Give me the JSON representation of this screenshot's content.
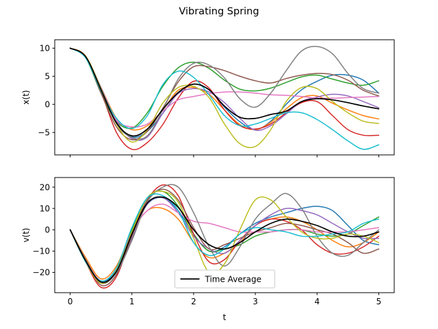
{
  "figure": {
    "title": "Vibrating Spring"
  },
  "chart_data": [
    {
      "type": "line",
      "ylabel": "x(t)",
      "xlabel": "",
      "xlim": [
        -0.25,
        5.25
      ],
      "ylim": [
        -9.0,
        11.5
      ],
      "xticks": [
        0,
        1,
        2,
        3,
        4,
        5
      ],
      "xtick_labels_visible": false,
      "yticks": [
        -5,
        0,
        5,
        10
      ],
      "ytick_labels": [
        "−5",
        "0",
        "5",
        "10"
      ],
      "grid": false,
      "t": [
        0,
        0.25,
        0.5,
        0.75,
        1,
        1.25,
        1.5,
        1.75,
        2,
        2.25,
        2.5,
        2.75,
        3,
        3.25,
        3.5,
        3.75,
        4,
        4.25,
        4.5,
        4.75,
        5
      ],
      "series": [
        {
          "color": "#1f77b4",
          "values": [
            10,
            8.5,
            2.8,
            -3.2,
            -5.8,
            -4.8,
            -1.6,
            2.0,
            3.6,
            2.6,
            -0.5,
            -3.1,
            -4.5,
            -3.0,
            0.0,
            2.6,
            4.1,
            5.2,
            5.2,
            4.3,
            2.0
          ]
        },
        {
          "color": "#ff7f0e",
          "values": [
            10,
            8.5,
            3.0,
            -2.5,
            -4.5,
            -3.8,
            -1.0,
            2.5,
            3.0,
            1.8,
            -1.0,
            -3.6,
            -4.5,
            -3.2,
            -0.8,
            1.2,
            1.5,
            0.2,
            -1.0,
            -2.0,
            -2.6
          ]
        },
        {
          "color": "#2ca02c",
          "values": [
            10,
            8.3,
            2.0,
            -3.0,
            -4.2,
            -1.5,
            3.2,
            6.5,
            7.5,
            6.4,
            4.3,
            2.7,
            2.4,
            2.9,
            3.9,
            4.9,
            5.2,
            4.5,
            3.8,
            3.4,
            4.2
          ]
        },
        {
          "color": "#d62728",
          "values": [
            10,
            8.6,
            2.3,
            -5.0,
            -8.0,
            -6.8,
            -3.6,
            1.1,
            4.1,
            2.9,
            -1.0,
            -3.8,
            -4.4,
            -3.5,
            -1.5,
            0.3,
            0.5,
            -2.0,
            -4.5,
            -5.5,
            -5.5
          ]
        },
        {
          "color": "#9467bd",
          "values": [
            10,
            8.5,
            3.0,
            -3.0,
            -6.1,
            -5.8,
            -1.6,
            1.9,
            2.8,
            2.2,
            0.3,
            -2.5,
            -4.6,
            -3.8,
            -1.7,
            0.5,
            1.3,
            1.8,
            1.5,
            0.5,
            -0.6
          ]
        },
        {
          "color": "#8c564b",
          "values": [
            10,
            8.4,
            2.0,
            -4.0,
            -6.3,
            -4.8,
            -0.7,
            4.0,
            6.7,
            6.7,
            6.0,
            5.0,
            4.2,
            3.8,
            4.6,
            5.2,
            5.5,
            5.3,
            4.3,
            2.5,
            1.5
          ]
        },
        {
          "color": "#e377c2",
          "values": [
            10,
            8.5,
            2.8,
            -2.8,
            -4.0,
            -3.5,
            -1.2,
            0.8,
            1.4,
            1.9,
            2.2,
            2.2,
            2.0,
            1.7,
            1.6,
            1.4,
            1.1,
            1.1,
            1.2,
            1.3,
            1.4
          ]
        },
        {
          "color": "#7f7f7f",
          "values": [
            10,
            8.5,
            2.8,
            -3.5,
            -5.9,
            -5.6,
            -1.0,
            4.5,
            7.3,
            7.0,
            4.7,
            1.0,
            -0.5,
            2.0,
            6.0,
            9.5,
            10.3,
            9.0,
            5.5,
            2.8,
            2.0
          ]
        },
        {
          "color": "#bcbd22",
          "values": [
            10,
            8.6,
            2.8,
            -3.5,
            -6.7,
            -4.5,
            0.2,
            3.0,
            3.2,
            1.2,
            -3.5,
            -7.0,
            -7.5,
            -4.5,
            0.5,
            3.0,
            2.8,
            0.5,
            -1.5,
            -3.0,
            -3.4
          ]
        },
        {
          "color": "#17becf",
          "values": [
            10,
            8.3,
            2.4,
            -2.5,
            -4.3,
            -2.0,
            3.5,
            5.9,
            4.8,
            1.7,
            -2.0,
            -3.8,
            -3.5,
            -2.5,
            -1.5,
            -1.5,
            -2.7,
            -4.5,
            -6.5,
            -8.0,
            -7.2
          ]
        },
        {
          "color": "#000000",
          "width": 1.7,
          "values": [
            10,
            8.5,
            2.6,
            -3.3,
            -5.6,
            -4.4,
            -0.9,
            2.1,
            3.6,
            2.6,
            -0.3,
            -2.3,
            -2.5,
            -1.8,
            -1.2,
            0.5,
            1.0,
            0.8,
            0.3,
            -0.3,
            -0.8
          ]
        }
      ]
    },
    {
      "type": "line",
      "ylabel": "v(t)",
      "xlabel": "t",
      "xlim": [
        -0.25,
        5.25
      ],
      "ylim": [
        -29.5,
        24.5
      ],
      "xticks": [
        0,
        1,
        2,
        3,
        4,
        5
      ],
      "xtick_labels": [
        "0",
        "1",
        "2",
        "3",
        "4",
        "5"
      ],
      "yticks": [
        -20,
        -10,
        0,
        10,
        20
      ],
      "ytick_labels": [
        "−20",
        "−10",
        "0",
        "10",
        "20"
      ],
      "grid": false,
      "legend": {
        "location": "lower center",
        "entries": [
          {
            "label": "Time Average",
            "color": "#000000"
          }
        ]
      },
      "t": [
        0,
        0.25,
        0.5,
        0.75,
        1,
        1.25,
        1.5,
        1.75,
        2,
        2.25,
        2.5,
        2.75,
        3,
        3.25,
        3.5,
        3.75,
        4,
        4.25,
        4.5,
        4.75,
        5
      ],
      "series": [
        {
          "color": "#1f77b4",
          "values": [
            0,
            -14,
            -24,
            -19,
            -2,
            12,
            15,
            9,
            -2,
            -10,
            -8,
            -2,
            3,
            6,
            8,
            10,
            11,
            9,
            2,
            -5,
            -7
          ]
        },
        {
          "color": "#ff7f0e",
          "values": [
            0,
            -13,
            -23,
            -17,
            -1,
            9,
            10,
            5,
            -6,
            -13,
            -11,
            -6,
            2,
            5,
            6,
            4,
            0,
            -5,
            -8,
            -6,
            -1
          ]
        },
        {
          "color": "#2ca02c",
          "values": [
            0,
            -15,
            -25,
            -19,
            0,
            15,
            18,
            11,
            -2,
            -10,
            -9,
            -7,
            -3,
            -1,
            0,
            0,
            -2,
            -3,
            -2,
            2,
            6
          ]
        },
        {
          "color": "#d62728",
          "values": [
            0,
            -15,
            -27,
            -22,
            -2,
            14,
            21,
            16,
            -2,
            -15,
            -14,
            -5,
            2,
            5,
            4,
            0,
            -7,
            -11,
            -11,
            -8,
            -3
          ]
        },
        {
          "color": "#9467bd",
          "values": [
            0,
            -14,
            -25,
            -20,
            -4,
            12,
            15,
            8,
            -3,
            -9,
            -11,
            -5,
            2,
            7,
            10,
            9,
            7,
            3,
            -1,
            -4,
            -4
          ]
        },
        {
          "color": "#8c564b",
          "values": [
            0,
            -14,
            -26,
            -21,
            -3,
            14,
            19,
            14,
            1,
            -9,
            -7,
            -4,
            -1,
            1,
            3,
            2,
            0,
            -2,
            -6,
            -11,
            -9
          ]
        },
        {
          "color": "#e377c2",
          "values": [
            0,
            -14,
            -24,
            -18,
            -1,
            9,
            12,
            8,
            4,
            3,
            1,
            -1,
            -1,
            -1,
            0,
            0,
            -1,
            -1,
            -1,
            0,
            1
          ]
        },
        {
          "color": "#7f7f7f",
          "values": [
            0,
            -14,
            -25,
            -20,
            -5,
            13,
            20,
            20,
            8,
            -8,
            -17,
            -8,
            5,
            12,
            17,
            10,
            -3,
            -11,
            -12,
            -6,
            0
          ]
        },
        {
          "color": "#bcbd22",
          "values": [
            0,
            -15,
            -25,
            -19,
            -1,
            15,
            18,
            13,
            -4,
            -20,
            -16,
            0,
            14,
            14,
            6,
            -1,
            -4,
            -4,
            -2,
            -3,
            -6
          ]
        },
        {
          "color": "#17becf",
          "values": [
            0,
            -15,
            -24,
            -18,
            1,
            15,
            16,
            9,
            -6,
            -12,
            -9,
            -2,
            1,
            0,
            -1,
            -3,
            -3,
            -2,
            -1,
            3,
            5
          ]
        },
        {
          "color": "#000000",
          "width": 1.7,
          "values": [
            0,
            -14.5,
            -24.5,
            -19.5,
            -2,
            12.5,
            15.3,
            10.5,
            0,
            -7,
            -9,
            -6,
            -1,
            3,
            5,
            4,
            2,
            -1,
            -3,
            -3,
            -1
          ]
        }
      ]
    }
  ]
}
